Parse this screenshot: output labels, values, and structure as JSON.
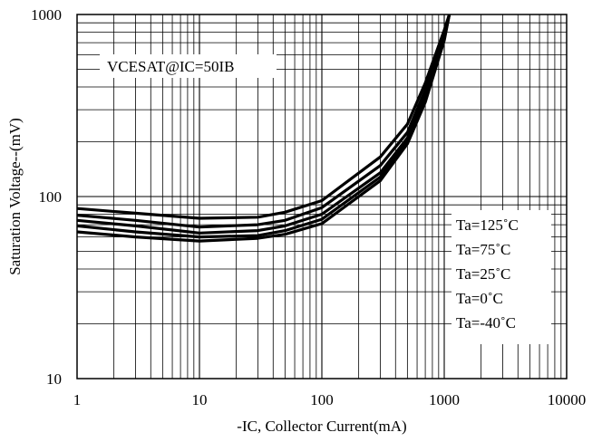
{
  "chart_data": {
    "type": "line",
    "xlabel": "-IC, Collector Current(mA)",
    "ylabel": "Saturation Voltage--(mV)",
    "xscale": "log",
    "yscale": "log",
    "xlim": [
      1,
      10000
    ],
    "ylim": [
      10,
      1000
    ],
    "grid": true,
    "x_tick_labels": [
      "1",
      "10",
      "100",
      "1000",
      "10000"
    ],
    "y_tick_labels": [
      "10",
      "100",
      "1000"
    ],
    "annotations": [
      "VCESAT@IC=50IB"
    ],
    "legend_placement": "right",
    "legend_entries": [
      "Ta=125˚C",
      "Ta=75˚C",
      "Ta=25˚C",
      "Ta=0˚C",
      "Ta=-40˚C"
    ],
    "series": [
      {
        "name": "Ta=125˚C",
        "x": [
          1,
          3,
          10,
          30,
          50,
          100,
          300,
          500,
          700,
          1000,
          1100
        ],
        "y": [
          86,
          81,
          76,
          77,
          82,
          95,
          165,
          250,
          420,
          820,
          1000
        ]
      },
      {
        "name": "Ta=75˚C",
        "x": [
          1,
          3,
          10,
          30,
          50,
          100,
          300,
          500,
          700,
          1000,
          1100
        ],
        "y": [
          79,
          74,
          68,
          70,
          74,
          87,
          148,
          225,
          385,
          790,
          1000
        ]
      },
      {
        "name": "Ta=25˚C",
        "x": [
          1,
          3,
          10,
          30,
          50,
          100,
          300,
          500,
          700,
          1000,
          1100
        ],
        "y": [
          74,
          69,
          63,
          65,
          69,
          80,
          135,
          210,
          360,
          760,
          1000
        ]
      },
      {
        "name": "Ta=0˚C",
        "x": [
          1,
          3,
          10,
          30,
          50,
          100,
          300,
          500,
          700,
          1000,
          1100
        ],
        "y": [
          69,
          64,
          60,
          61,
          65,
          75,
          128,
          200,
          345,
          740,
          1000
        ]
      },
      {
        "name": "Ta=-40˚C",
        "x": [
          1,
          3,
          10,
          30,
          50,
          100,
          300,
          500,
          700,
          1000,
          1100
        ],
        "y": [
          64,
          60,
          57,
          59,
          62,
          71,
          122,
          195,
          330,
          720,
          1000
        ]
      }
    ],
    "colors": {
      "line": "#000000",
      "grid": "#000000",
      "background": "#ffffff"
    }
  }
}
